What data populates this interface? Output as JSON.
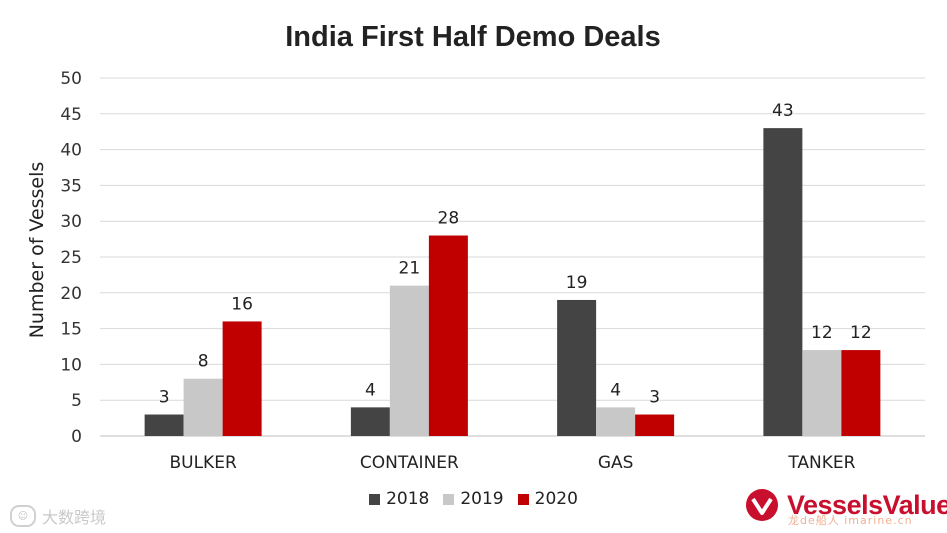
{
  "chart_data": {
    "type": "bar",
    "title": "India First Half Demo Deals",
    "xlabel": "",
    "ylabel": "Number of Vessels",
    "ylim": [
      0,
      50
    ],
    "yticks": [
      0,
      5,
      10,
      15,
      20,
      25,
      30,
      35,
      40,
      45,
      50
    ],
    "categories": [
      "BULKER",
      "CONTAINER",
      "GAS",
      "TANKER"
    ],
    "series": [
      {
        "name": "2018",
        "values": [
          3,
          4,
          19,
          43
        ],
        "color": "#444444"
      },
      {
        "name": "2019",
        "values": [
          8,
          21,
          4,
          12
        ],
        "color": "#c8c8c8"
      },
      {
        "name": "2020",
        "values": [
          16,
          28,
          3,
          12
        ],
        "color": "#c00000"
      }
    ],
    "grid": true,
    "legend": "bottom-center"
  },
  "watermark": {
    "left_text": "大数跨境"
  },
  "brand": {
    "name": "VesselsValue",
    "sub": "龙de船人 imarine.cn",
    "color": "#c8102e"
  }
}
